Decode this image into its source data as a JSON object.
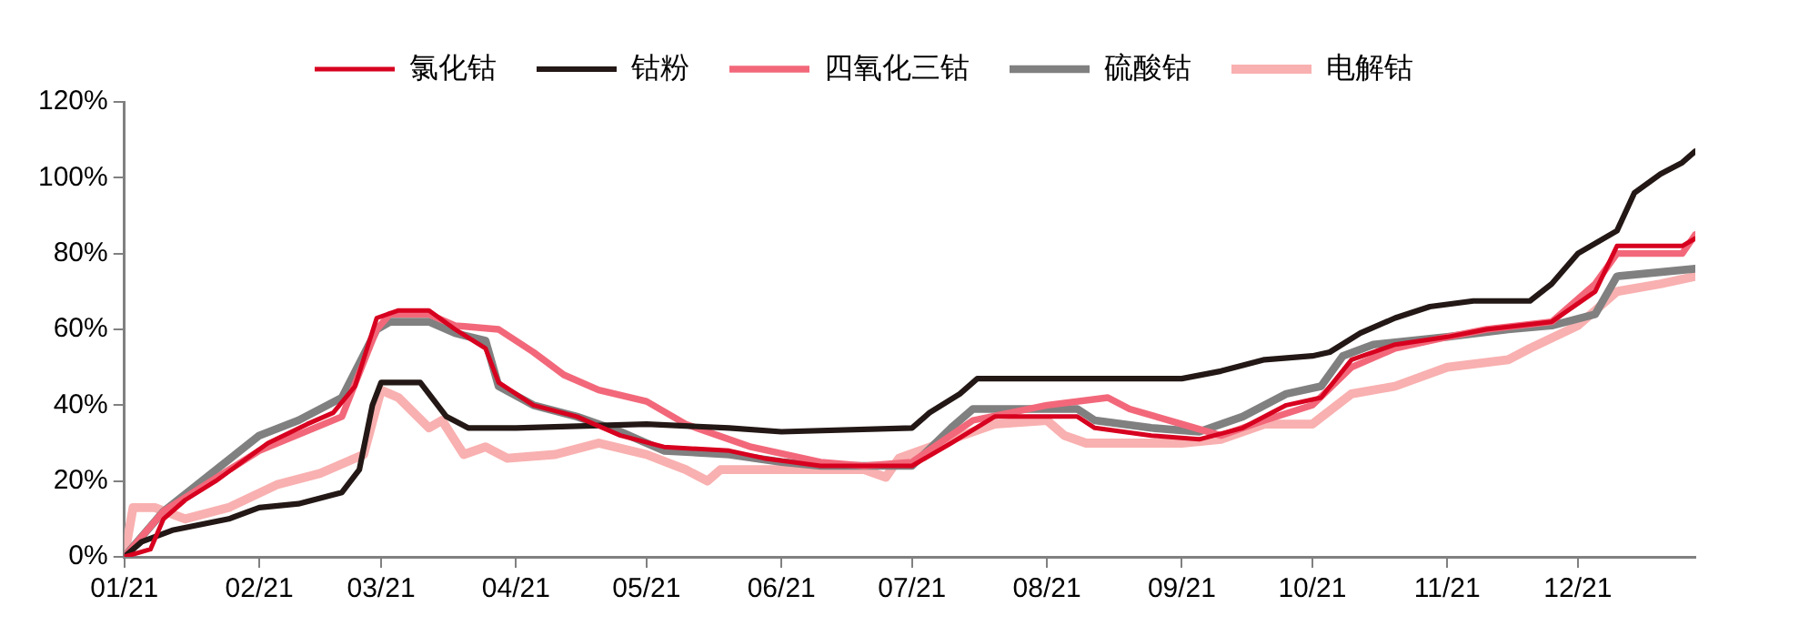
{
  "chart_data": {
    "type": "line",
    "xlim": [
      "2021-01-01",
      "2021-12-28"
    ],
    "xticks": [
      {
        "value": "2021-01-01",
        "label": "01/21"
      },
      {
        "value": "2021-02-01",
        "label": "02/21"
      },
      {
        "value": "2021-03-01",
        "label": "03/21"
      },
      {
        "value": "2021-04-01",
        "label": "04/21"
      },
      {
        "value": "2021-05-01",
        "label": "05/21"
      },
      {
        "value": "2021-06-01",
        "label": "06/21"
      },
      {
        "value": "2021-07-01",
        "label": "07/21"
      },
      {
        "value": "2021-08-01",
        "label": "08/21"
      },
      {
        "value": "2021-09-01",
        "label": "09/21"
      },
      {
        "value": "2021-10-01",
        "label": "10/21"
      },
      {
        "value": "2021-11-01",
        "label": "11/21"
      },
      {
        "value": "2021-12-01",
        "label": "12/21"
      }
    ],
    "ylim": [
      0,
      120
    ],
    "yticks": [
      {
        "value": 0,
        "label": "0%"
      },
      {
        "value": 20,
        "label": "20%"
      },
      {
        "value": 40,
        "label": "40%"
      },
      {
        "value": 60,
        "label": "60%"
      },
      {
        "value": 80,
        "label": "80%"
      },
      {
        "value": 100,
        "label": "100%"
      },
      {
        "value": 120,
        "label": "120%"
      }
    ],
    "grid": false,
    "legend": "top",
    "marker": "none",
    "line_style": "solid",
    "series": [
      {
        "name": "氯化钴",
        "color": "#d7001f",
        "x": [
          "2021-01-01",
          "2021-01-07",
          "2021-01-10",
          "2021-01-15",
          "2021-01-22",
          "2021-01-28",
          "2021-02-03",
          "2021-02-12",
          "2021-02-18",
          "2021-02-23",
          "2021-02-28",
          "2021-03-05",
          "2021-03-12",
          "2021-03-18",
          "2021-03-25",
          "2021-03-28",
          "2021-04-05",
          "2021-04-15",
          "2021-04-25",
          "2021-05-05",
          "2021-05-20",
          "2021-05-28",
          "2021-06-10",
          "2021-07-01",
          "2021-07-10",
          "2021-07-20",
          "2021-08-01",
          "2021-08-08",
          "2021-08-12",
          "2021-08-25",
          "2021-09-05",
          "2021-09-15",
          "2021-09-25",
          "2021-10-03",
          "2021-10-10",
          "2021-10-20",
          "2021-11-01",
          "2021-11-10",
          "2021-11-25",
          "2021-12-05",
          "2021-12-10",
          "2021-12-25",
          "2021-12-28"
        ],
        "values": [
          0,
          2,
          10,
          15,
          20,
          25,
          30,
          35,
          38,
          45,
          63,
          65,
          65,
          60,
          55,
          46,
          40,
          37,
          32,
          29,
          28,
          26,
          24,
          24,
          30,
          37,
          37,
          37,
          34,
          32,
          31,
          34,
          40,
          42,
          52,
          56,
          58,
          60,
          62,
          70,
          82,
          82,
          84
        ]
      },
      {
        "name": "钴粉",
        "color": "#231815",
        "x": [
          "2021-01-01",
          "2021-01-05",
          "2021-01-12",
          "2021-01-25",
          "2021-02-01",
          "2021-02-10",
          "2021-02-20",
          "2021-02-24",
          "2021-02-27",
          "2021-03-01",
          "2021-03-10",
          "2021-03-16",
          "2021-03-21",
          "2021-04-01",
          "2021-05-01",
          "2021-05-20",
          "2021-06-01",
          "2021-07-01",
          "2021-07-05",
          "2021-07-12",
          "2021-07-16",
          "2021-08-01",
          "2021-08-20",
          "2021-09-01",
          "2021-09-10",
          "2021-09-20",
          "2021-10-01",
          "2021-10-05",
          "2021-10-12",
          "2021-10-20",
          "2021-10-28",
          "2021-11-07",
          "2021-11-20",
          "2021-11-25",
          "2021-12-01",
          "2021-12-10",
          "2021-12-14",
          "2021-12-20",
          "2021-12-25",
          "2021-12-28"
        ],
        "values": [
          0,
          4,
          7,
          10,
          13,
          14,
          17,
          23,
          40,
          46,
          46,
          37,
          34,
          34,
          35,
          34,
          33,
          34,
          38,
          43,
          47,
          47,
          47,
          47,
          49,
          52,
          53,
          54,
          59,
          63,
          66,
          67.5,
          67.5,
          72,
          80,
          86,
          96,
          101,
          104,
          107
        ]
      },
      {
        "name": "四氧化三钴",
        "color": "#f2687a",
        "x": [
          "2021-01-01",
          "2021-01-10",
          "2021-02-01",
          "2021-02-20",
          "2021-02-28",
          "2021-03-03",
          "2021-03-12",
          "2021-03-18",
          "2021-03-28",
          "2021-04-05",
          "2021-04-12",
          "2021-04-20",
          "2021-05-01",
          "2021-05-10",
          "2021-05-25",
          "2021-06-10",
          "2021-06-20",
          "2021-07-01",
          "2021-07-15",
          "2021-08-01",
          "2021-08-15",
          "2021-08-20",
          "2021-09-01",
          "2021-09-10",
          "2021-09-20",
          "2021-10-01",
          "2021-10-10",
          "2021-10-20",
          "2021-11-01",
          "2021-11-10",
          "2021-11-25",
          "2021-12-05",
          "2021-12-10",
          "2021-12-25",
          "2021-12-28"
        ],
        "values": [
          0,
          12,
          28,
          37,
          60,
          64,
          64,
          61,
          60,
          54,
          48,
          44,
          41,
          35,
          29,
          25,
          24,
          25,
          36,
          40,
          42,
          39,
          35,
          32,
          36,
          40,
          50,
          55,
          58,
          60,
          62,
          72,
          80,
          80,
          85
        ]
      },
      {
        "name": "硫酸钴",
        "color": "#808080",
        "x": [
          "2021-01-01",
          "2021-01-10",
          "2021-02-01",
          "2021-02-10",
          "2021-02-20",
          "2021-02-28",
          "2021-03-03",
          "2021-03-12",
          "2021-03-18",
          "2021-03-25",
          "2021-03-28",
          "2021-04-05",
          "2021-04-15",
          "2021-04-25",
          "2021-05-05",
          "2021-05-20",
          "2021-06-01",
          "2021-06-10",
          "2021-07-01",
          "2021-07-10",
          "2021-07-15",
          "2021-08-01",
          "2021-08-08",
          "2021-08-12",
          "2021-08-25",
          "2021-09-05",
          "2021-09-15",
          "2021-09-25",
          "2021-10-03",
          "2021-10-08",
          "2021-10-15",
          "2021-11-01",
          "2021-11-15",
          "2021-11-25",
          "2021-12-05",
          "2021-12-10",
          "2021-12-28"
        ],
        "values": [
          0,
          12,
          32,
          36,
          42,
          60,
          62,
          62,
          59,
          57,
          45,
          40,
          37,
          33,
          28,
          27,
          25,
          24,
          24,
          34,
          39,
          39,
          39,
          36,
          34,
          33,
          37,
          43,
          45,
          53,
          56,
          58,
          60,
          61,
          64,
          74,
          76
        ]
      },
      {
        "name": "电解钴",
        "color": "#f9b0b0",
        "x": [
          "2021-01-01",
          "2021-01-03",
          "2021-01-08",
          "2021-01-15",
          "2021-01-25",
          "2021-02-05",
          "2021-02-15",
          "2021-02-25",
          "2021-03-01",
          "2021-03-05",
          "2021-03-12",
          "2021-03-15",
          "2021-03-20",
          "2021-03-25",
          "2021-03-30",
          "2021-04-10",
          "2021-04-20",
          "2021-05-01",
          "2021-05-10",
          "2021-05-15",
          "2021-05-18",
          "2021-06-01",
          "2021-06-20",
          "2021-06-25",
          "2021-06-28",
          "2021-07-10",
          "2021-07-20",
          "2021-08-01",
          "2021-08-05",
          "2021-08-10",
          "2021-09-01",
          "2021-09-10",
          "2021-09-20",
          "2021-10-01",
          "2021-10-10",
          "2021-10-20",
          "2021-11-01",
          "2021-11-15",
          "2021-11-20",
          "2021-12-01",
          "2021-12-10",
          "2021-12-20",
          "2021-12-28"
        ],
        "values": [
          0,
          13,
          13,
          10,
          13,
          19,
          22,
          27,
          44,
          42,
          34,
          36,
          27,
          29,
          26,
          27,
          30,
          27,
          23,
          20,
          23,
          23,
          23,
          21,
          26,
          31,
          35,
          36,
          32,
          30,
          30,
          31,
          35,
          35,
          43,
          45,
          50,
          52,
          55,
          61,
          70,
          72,
          74
        ]
      }
    ]
  }
}
